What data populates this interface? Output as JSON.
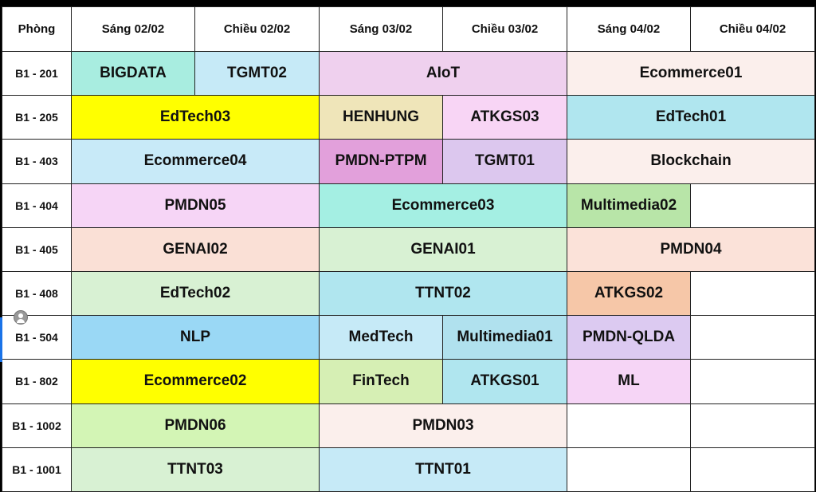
{
  "header": {
    "room": "Phòng",
    "sessions": [
      "Sáng 02/02",
      "Chiều 02/02",
      "Sáng 03/02",
      "Chiều 03/02",
      "Sáng 04/02",
      "Chiều 04/02"
    ]
  },
  "rows": [
    {
      "room": "B1 - 201",
      "cells": [
        {
          "label": "BIGDATA",
          "span": 1,
          "color": "#a8ede0"
        },
        {
          "label": "TGMT02",
          "span": 1,
          "color": "#c6eaf7"
        },
        {
          "label": "AIoT",
          "span": 2,
          "color": "#efd0ee"
        },
        {
          "label": "Ecommerce01",
          "span": 2,
          "color": "#fbefec"
        }
      ]
    },
    {
      "room": "B1 - 205",
      "cells": [
        {
          "label": "EdTech03",
          "span": 2,
          "color": "#ffff00"
        },
        {
          "label": "HENHUNG",
          "span": 1,
          "color": "#efe5b9"
        },
        {
          "label": "ATKGS03",
          "span": 1,
          "color": "#f8d5f5"
        },
        {
          "label": "EdTech01",
          "span": 2,
          "color": "#b0e6ef"
        }
      ]
    },
    {
      "room": "B1 - 403",
      "cells": [
        {
          "label": "Ecommerce04",
          "span": 2,
          "color": "#c8eaf8"
        },
        {
          "label": "PMDN-PTPM",
          "span": 1,
          "color": "#e2a0db"
        },
        {
          "label": "TGMT01",
          "span": 1,
          "color": "#dcc7ee"
        },
        {
          "label": "Blockchain",
          "span": 2,
          "color": "#fbefec"
        }
      ]
    },
    {
      "room": "B1 - 404",
      "cells": [
        {
          "label": "PMDN05",
          "span": 2,
          "color": "#f6d5f6"
        },
        {
          "label": "Ecommerce03",
          "span": 2,
          "color": "#a4efe3"
        },
        {
          "label": "Multimedia02",
          "span": 1,
          "color": "#b8e5a8"
        },
        {
          "label": "",
          "span": 1,
          "color": "#ffffff"
        }
      ]
    },
    {
      "room": "B1 - 405",
      "cells": [
        {
          "label": "GENAI02",
          "span": 2,
          "color": "#fae0d6"
        },
        {
          "label": "GENAI01",
          "span": 2,
          "color": "#d8f1d3"
        },
        {
          "label": "PMDN04",
          "span": 2,
          "color": "#fbe2d9"
        }
      ]
    },
    {
      "room": "B1 - 408",
      "cells": [
        {
          "label": "EdTech02",
          "span": 2,
          "color": "#d8f1d3"
        },
        {
          "label": "TTNT02",
          "span": 2,
          "color": "#b0e6ef"
        },
        {
          "label": "ATKGS02",
          "span": 1,
          "color": "#f6c7a8"
        },
        {
          "label": "",
          "span": 1,
          "color": "#ffffff"
        }
      ]
    },
    {
      "room": "B1 - 504",
      "cells": [
        {
          "label": "NLP",
          "span": 2,
          "color": "#9ad8f5"
        },
        {
          "label": "MedTech",
          "span": 1,
          "color": "#c6eaf7"
        },
        {
          "label": "Multimedia01",
          "span": 1,
          "color": "#b0e1ee"
        },
        {
          "label": "PMDN-QLDA",
          "span": 1,
          "color": "#dccaf1"
        },
        {
          "label": "",
          "span": 1,
          "color": "#ffffff"
        }
      ]
    },
    {
      "room": "B1 - 802",
      "cells": [
        {
          "label": "Ecommerce02",
          "span": 2,
          "color": "#ffff00"
        },
        {
          "label": "FinTech",
          "span": 1,
          "color": "#d6efb4"
        },
        {
          "label": "ATKGS01",
          "span": 1,
          "color": "#b0e6ef"
        },
        {
          "label": "ML",
          "span": 1,
          "color": "#f6d5f6"
        },
        {
          "label": "",
          "span": 1,
          "color": "#ffffff"
        }
      ]
    },
    {
      "room": "B1 - 1002",
      "cells": [
        {
          "label": "PMDN06",
          "span": 2,
          "color": "#d3f5b5"
        },
        {
          "label": "PMDN03",
          "span": 2,
          "color": "#fbefec"
        },
        {
          "label": "",
          "span": 1,
          "color": "#ffffff"
        },
        {
          "label": "",
          "span": 1,
          "color": "#ffffff"
        }
      ]
    },
    {
      "room": "B1 - 1001",
      "cells": [
        {
          "label": "TTNT03",
          "span": 2,
          "color": "#d8f1d3"
        },
        {
          "label": "TTNT01",
          "span": 2,
          "color": "#c6eaf7"
        },
        {
          "label": "",
          "span": 1,
          "color": "#ffffff"
        },
        {
          "label": "",
          "span": 1,
          "color": "#ffffff"
        }
      ]
    }
  ]
}
